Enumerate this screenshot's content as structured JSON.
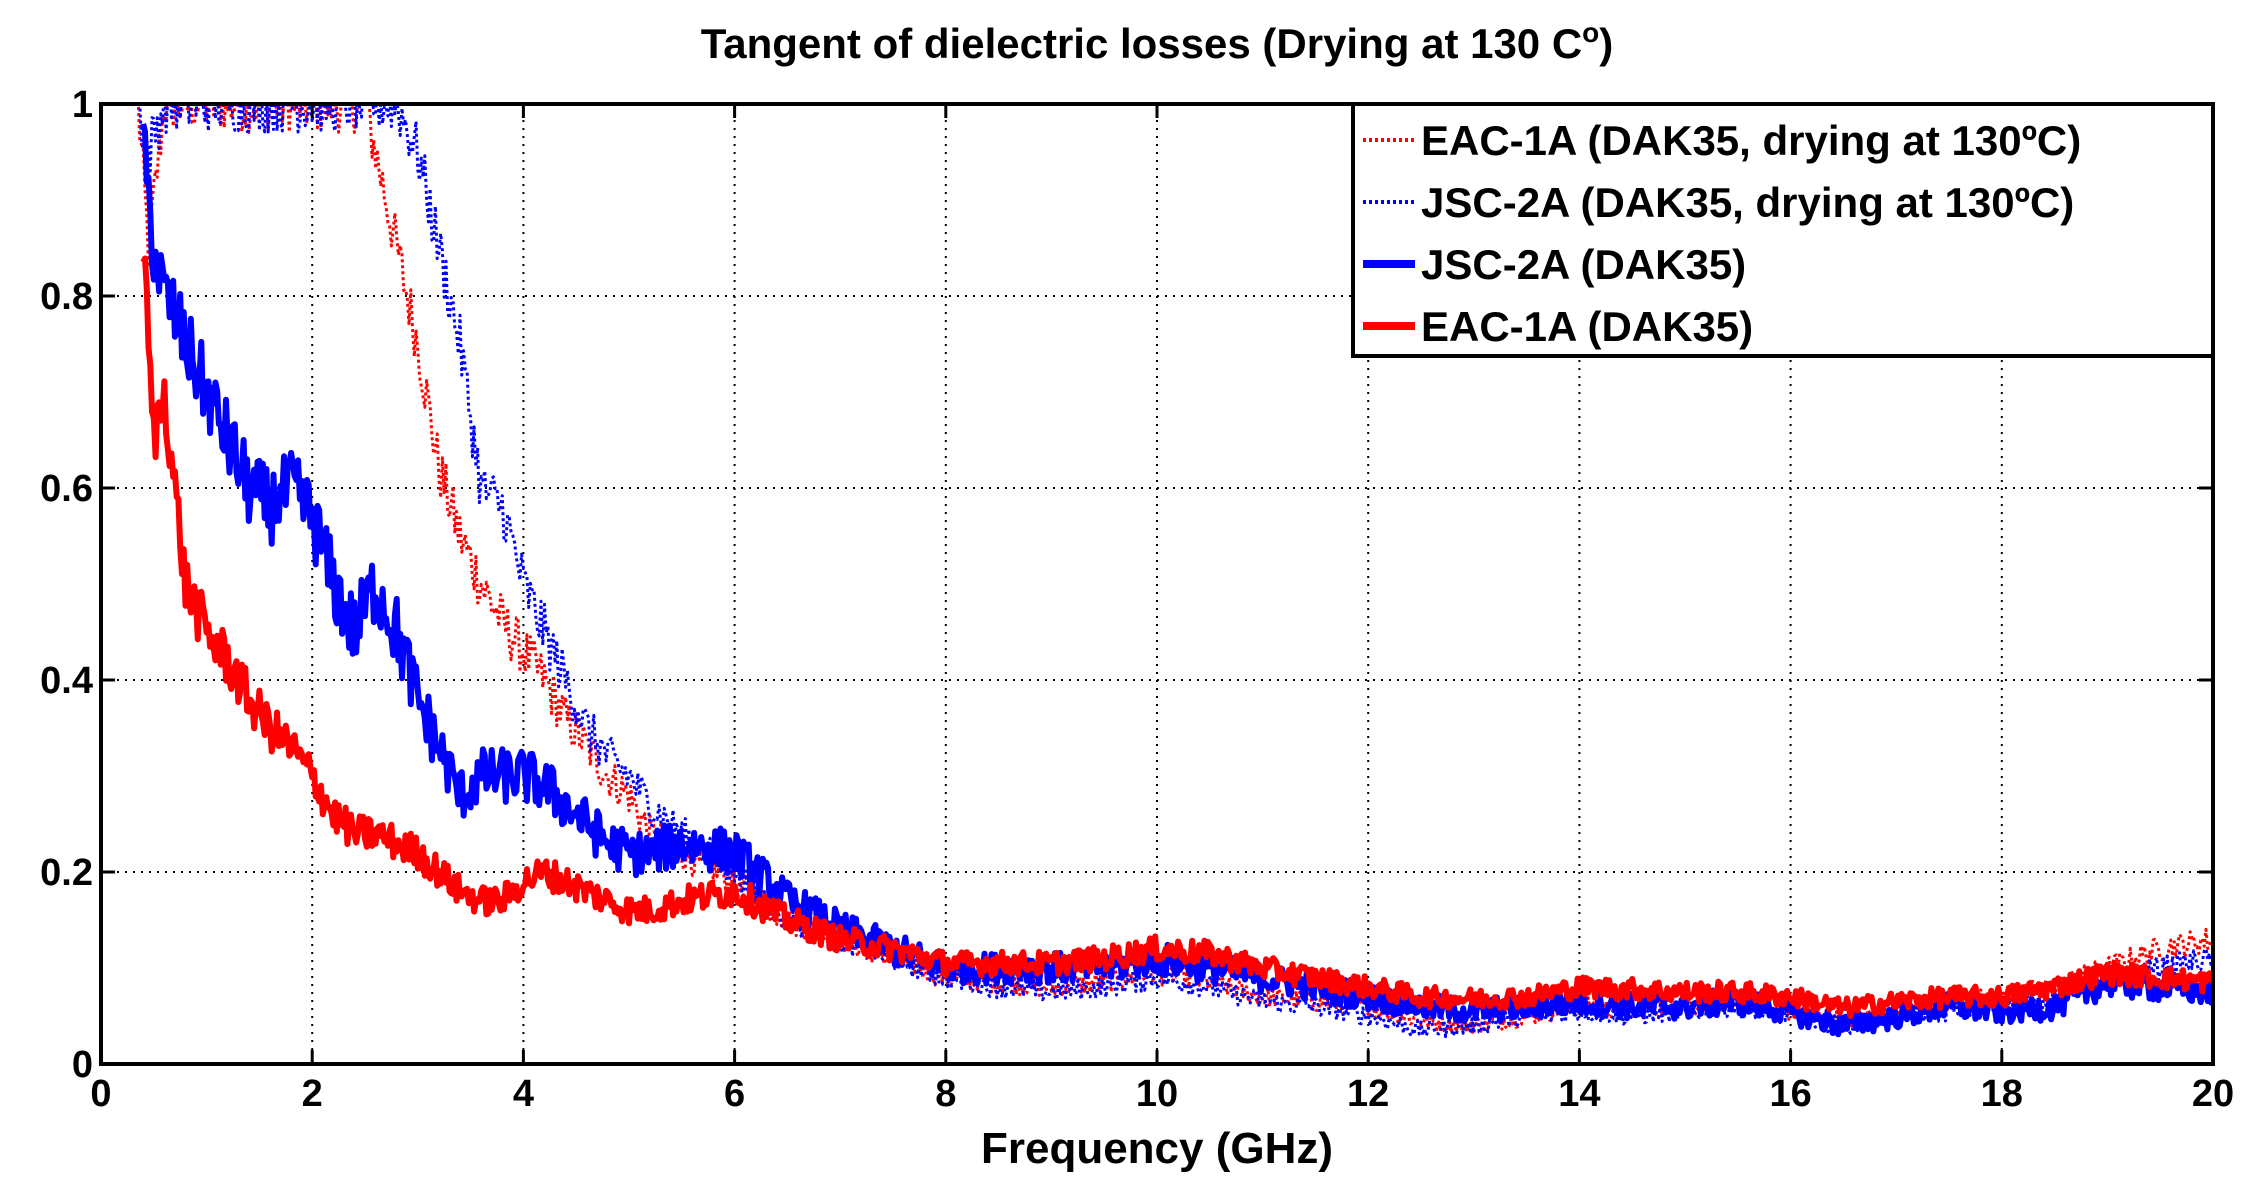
{
  "chart_data": {
    "type": "line",
    "title": "Tangent of dielectric losses  (Drying at 130 C",
    "title_superscript": "o",
    "title_suffix": ")",
    "xlabel": "Frequency (GHz)",
    "ylabel": "",
    "xlim": [
      0,
      20
    ],
    "ylim": [
      0,
      1
    ],
    "xticks": [
      0,
      2,
      4,
      6,
      8,
      10,
      12,
      14,
      16,
      18,
      20
    ],
    "yticks": [
      0,
      0.2,
      0.4,
      0.6,
      0.8,
      1
    ],
    "xtick_labels": [
      "0",
      "2",
      "4",
      "6",
      "8",
      "10",
      "12",
      "14",
      "16",
      "18",
      "20"
    ],
    "ytick_labels": [
      "0",
      "0.2",
      "0.4",
      "0.6",
      "0.8",
      "1"
    ],
    "grid": true,
    "legend_position": "top-right",
    "series": [
      {
        "name": "EAC-1A (DAK35, drying at 130ºC)",
        "color": "#ff0000",
        "style": "dotted",
        "noise": 0.03,
        "x": [
          0.35,
          0.45,
          0.6,
          0.8,
          1.0,
          1.2,
          1.4,
          2.5,
          2.8,
          3.0,
          3.2,
          3.4,
          3.6,
          3.8,
          4.0,
          4.2,
          4.4,
          4.6,
          4.8,
          5.0,
          5.2,
          5.5,
          6.0,
          6.5,
          7.0,
          7.5,
          8.0,
          8.5,
          9.0,
          9.5,
          10.0,
          10.5,
          11.0,
          11.5,
          12.0,
          12.5,
          13.0,
          13.5,
          14.0,
          14.5,
          15.0,
          15.5,
          16.0,
          16.5,
          17.0,
          17.5,
          18.0,
          18.5,
          19.0,
          19.5,
          20.0
        ],
        "y": [
          1.0,
          0.85,
          1.0,
          1.0,
          1.0,
          1.0,
          1.0,
          1.0,
          0.85,
          0.75,
          0.62,
          0.55,
          0.5,
          0.46,
          0.43,
          0.4,
          0.36,
          0.33,
          0.3,
          0.28,
          0.24,
          0.22,
          0.19,
          0.15,
          0.13,
          0.11,
          0.09,
          0.085,
          0.08,
          0.085,
          0.095,
          0.085,
          0.07,
          0.065,
          0.06,
          0.045,
          0.04,
          0.05,
          0.06,
          0.055,
          0.06,
          0.065,
          0.055,
          0.045,
          0.055,
          0.065,
          0.07,
          0.08,
          0.1,
          0.12,
          0.13
        ]
      },
      {
        "name": "JSC-2A (DAK35, drying at 130ºC)",
        "color": "#0000ff",
        "style": "dotted",
        "noise": 0.03,
        "x": [
          0.35,
          0.45,
          0.6,
          0.8,
          1.0,
          2.8,
          3.0,
          3.2,
          3.4,
          3.6,
          3.8,
          4.0,
          4.2,
          4.4,
          4.6,
          4.8,
          5.0,
          5.2,
          5.5,
          6.0,
          6.5,
          7.0,
          7.5,
          8.0,
          8.5,
          9.0,
          9.5,
          10.0,
          10.5,
          11.0,
          11.5,
          12.0,
          12.5,
          13.0,
          13.5,
          14.0,
          14.5,
          15.0,
          15.5,
          16.0,
          16.5,
          17.0,
          17.5,
          18.0,
          18.5,
          19.0,
          19.5,
          20.0
        ],
        "y": [
          1.0,
          0.95,
          1.0,
          1.0,
          1.0,
          1.0,
          0.95,
          0.85,
          0.75,
          0.6,
          0.58,
          0.5,
          0.45,
          0.4,
          0.35,
          0.32,
          0.3,
          0.27,
          0.24,
          0.2,
          0.15,
          0.13,
          0.11,
          0.09,
          0.08,
          0.075,
          0.08,
          0.09,
          0.08,
          0.065,
          0.06,
          0.05,
          0.035,
          0.04,
          0.05,
          0.055,
          0.05,
          0.055,
          0.06,
          0.05,
          0.04,
          0.05,
          0.055,
          0.06,
          0.07,
          0.09,
          0.1,
          0.11
        ]
      },
      {
        "name": "JSC-2A (DAK35)",
        "color": "#0000ff",
        "style": "solid",
        "noise": 0.04,
        "x": [
          0.4,
          0.5,
          0.6,
          0.7,
          0.8,
          1.0,
          1.2,
          1.4,
          1.6,
          1.8,
          2.0,
          2.2,
          2.4,
          2.6,
          2.8,
          3.0,
          3.2,
          3.4,
          3.6,
          3.8,
          4.0,
          4.2,
          4.4,
          4.6,
          4.8,
          5.0,
          5.2,
          5.5,
          6.0,
          6.5,
          7.0,
          7.5,
          8.0,
          8.5,
          9.0,
          9.5,
          10.0,
          10.5,
          11.0,
          11.5,
          12.0,
          12.5,
          13.0,
          13.5,
          14.0,
          14.5,
          15.0,
          15.5,
          16.0,
          16.5,
          17.0,
          17.5,
          18.0,
          18.5,
          19.0,
          19.5,
          20.0
        ],
        "y": [
          0.95,
          0.85,
          0.8,
          0.78,
          0.75,
          0.7,
          0.65,
          0.6,
          0.58,
          0.6,
          0.57,
          0.5,
          0.45,
          0.5,
          0.45,
          0.38,
          0.33,
          0.28,
          0.3,
          0.3,
          0.3,
          0.29,
          0.27,
          0.25,
          0.23,
          0.22,
          0.22,
          0.23,
          0.22,
          0.17,
          0.14,
          0.12,
          0.1,
          0.1,
          0.1,
          0.1,
          0.11,
          0.1,
          0.09,
          0.08,
          0.07,
          0.06,
          0.055,
          0.06,
          0.065,
          0.06,
          0.06,
          0.065,
          0.055,
          0.04,
          0.05,
          0.06,
          0.055,
          0.06,
          0.085,
          0.08,
          0.075
        ]
      },
      {
        "name": "EAC-1A (DAK35)",
        "color": "#ff0000",
        "style": "solid",
        "noise": 0.03,
        "x": [
          0.4,
          0.5,
          0.6,
          0.7,
          0.8,
          1.0,
          1.2,
          1.4,
          1.6,
          1.8,
          2.0,
          2.2,
          2.4,
          2.6,
          2.8,
          3.0,
          3.2,
          3.4,
          3.6,
          3.8,
          4.0,
          4.2,
          4.4,
          4.6,
          4.8,
          5.0,
          5.2,
          5.5,
          6.0,
          6.5,
          7.0,
          7.5,
          8.0,
          8.5,
          9.0,
          9.5,
          10.0,
          10.5,
          11.0,
          11.5,
          12.0,
          12.5,
          13.0,
          13.5,
          14.0,
          14.5,
          15.0,
          15.5,
          16.0,
          16.5,
          17.0,
          17.5,
          18.0,
          18.5,
          19.0,
          19.5,
          20.0
        ],
        "y": [
          0.85,
          0.65,
          0.7,
          0.6,
          0.5,
          0.45,
          0.42,
          0.38,
          0.35,
          0.33,
          0.3,
          0.26,
          0.24,
          0.24,
          0.23,
          0.22,
          0.2,
          0.18,
          0.17,
          0.17,
          0.19,
          0.2,
          0.19,
          0.18,
          0.17,
          0.16,
          0.16,
          0.17,
          0.18,
          0.15,
          0.13,
          0.12,
          0.105,
          0.105,
          0.105,
          0.11,
          0.12,
          0.115,
          0.1,
          0.09,
          0.08,
          0.07,
          0.068,
          0.07,
          0.08,
          0.078,
          0.075,
          0.075,
          0.07,
          0.058,
          0.065,
          0.07,
          0.07,
          0.08,
          0.095,
          0.09,
          0.085
        ]
      }
    ]
  }
}
